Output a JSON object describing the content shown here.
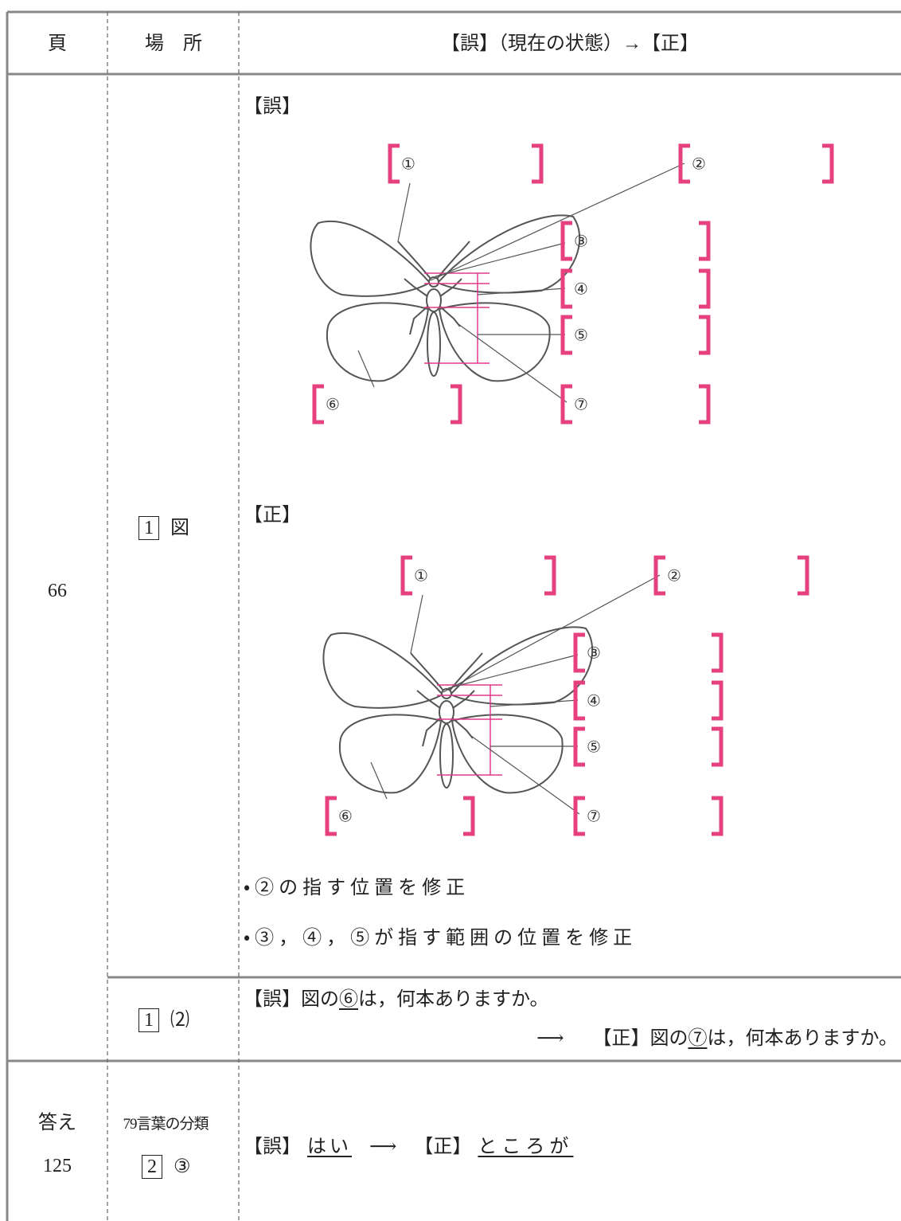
{
  "table": {
    "header": [
      "頁",
      "場　所",
      "【誤】（現在の状態）→【正】"
    ],
    "rows": [
      {
        "page": "66",
        "entries": [
          {
            "place": {
              "box": "1",
              "text": "図"
            },
            "wrong": {
              "label": "【誤】",
              "figure_labels": [
                "①",
                "②",
                "③",
                "④",
                "⑤",
                "⑥",
                "⑦"
              ]
            },
            "correct": {
              "label": "【正】",
              "figure_labels": [
                "①",
                "②",
                "③",
                "④",
                "⑤",
                "⑥",
                "⑦"
              ]
            },
            "notes": [
              "・②の指す位置を修正",
              "・③，④，⑤が指す範囲の位置を修正"
            ]
          },
          {
            "place": {
              "box": "1",
              "text": "⑵"
            },
            "wrong": {
              "label": "【誤】",
              "text": [
                "図の",
                "⑥",
                "は，何本ありますか。"
              ]
            },
            "arrow": "⟶",
            "correct": {
              "label": "【正】",
              "text": [
                "図の",
                "⑦",
                "は，何本ありますか。"
              ]
            }
          }
        ]
      },
      {
        "page": [
          "答え",
          "125"
        ],
        "entries": [
          {
            "place": {
              "heading": "79言葉の分類",
              "box": "2",
              "text": "③"
            },
            "wrong": {
              "label": "【誤】",
              "text": "はい"
            },
            "arrow": "⟶",
            "correct": {
              "label": "【正】",
              "text": "ところが"
            }
          }
        ]
      }
    ]
  }
}
